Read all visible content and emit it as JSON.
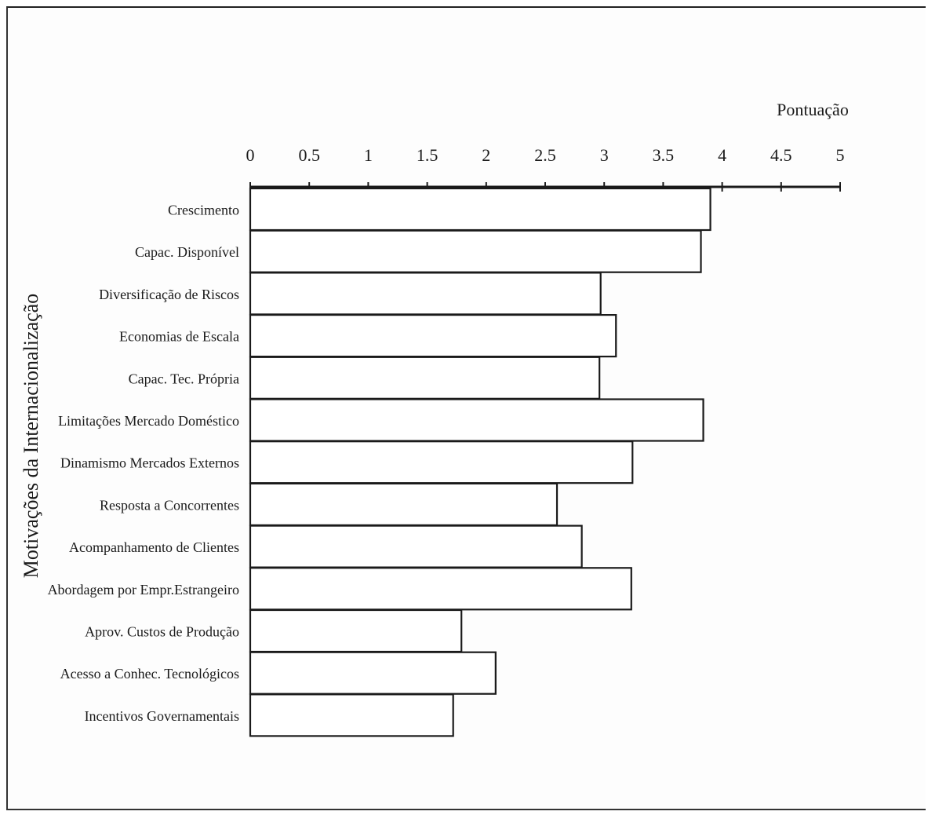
{
  "chart_data": {
    "type": "bar",
    "orientation": "horizontal",
    "title": "",
    "xlabel": "Pontuação",
    "ylabel": "Motivações da Internacionalização",
    "xlim": [
      0,
      5
    ],
    "xticks": [
      "0",
      "0.5",
      "1",
      "1.5",
      "2",
      "2.5",
      "3",
      "3.5",
      "4",
      "4.5",
      "5"
    ],
    "axis_position": "top",
    "grid": false,
    "legend": "none",
    "categories": [
      "Crescimento",
      "Capac. Disponível",
      "Diversificação de Riscos",
      "Economias de Escala",
      "Capac. Tec. Própria",
      "Limitações Mercado Doméstico",
      "Dinamismo Mercados Externos",
      "Resposta a Concorrentes",
      "Acompanhamento de Clientes",
      "Abordagem por Empr.Estrangeiro",
      "Aprov. Custos de Produção",
      "Acesso a Conhec. Tecnológicos",
      "Incentivos Governamentais"
    ],
    "values": [
      3.9,
      3.82,
      2.97,
      3.1,
      2.96,
      3.84,
      3.24,
      2.6,
      2.81,
      3.23,
      1.79,
      2.08,
      1.72
    ],
    "colors": {
      "bar_fill": "#ffffff",
      "bar_stroke": "#1a1a1a",
      "axis": "#1a1a1a"
    }
  }
}
